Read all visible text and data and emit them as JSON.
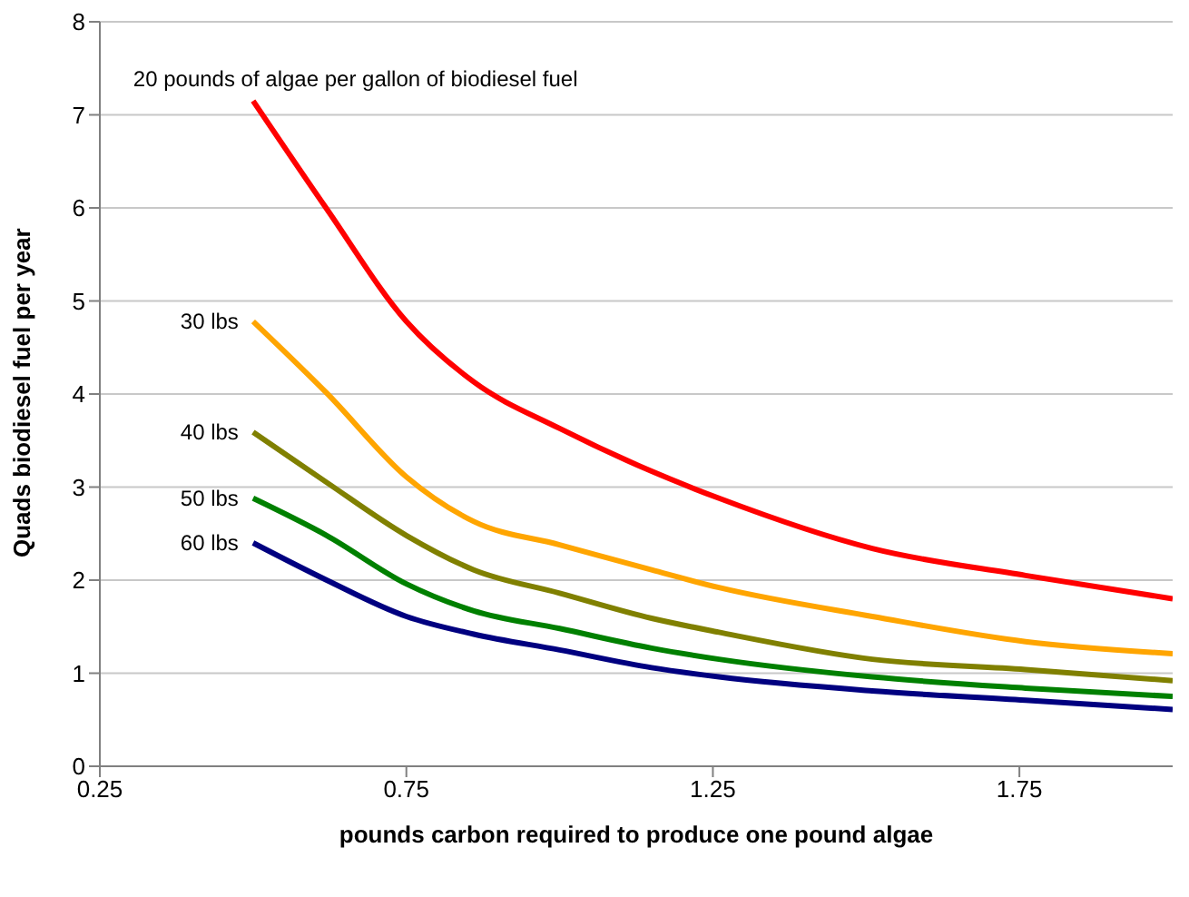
{
  "chart_data": {
    "type": "line",
    "xlabel": "pounds carbon required to produce one pound algae",
    "ylabel": "Quads biodiesel fuel per year",
    "x": [
      0.5,
      0.62,
      0.75,
      0.86,
      1.0,
      1.15,
      1.26,
      1.51,
      1.76,
      2.0
    ],
    "series": [
      {
        "name": "20 pounds of algae per gallon of biodiesel fuel",
        "color": "#ff0000",
        "values": [
          7.15,
          5.99,
          4.78,
          4.13,
          3.63,
          3.17,
          2.88,
          2.34,
          2.05,
          1.8
        ]
      },
      {
        "name": "30 lbs",
        "color": "#ffa500",
        "values": [
          4.78,
          4.01,
          3.11,
          2.63,
          2.38,
          2.11,
          1.92,
          1.61,
          1.34,
          1.21
        ]
      },
      {
        "name": "40 lbs",
        "color": "#808000",
        "values": [
          3.59,
          3.05,
          2.48,
          2.11,
          1.86,
          1.59,
          1.44,
          1.15,
          1.04,
          0.92
        ]
      },
      {
        "name": "50 lbs",
        "color": "#008000",
        "values": [
          2.88,
          2.48,
          1.96,
          1.67,
          1.48,
          1.27,
          1.15,
          0.96,
          0.84,
          0.75
        ]
      },
      {
        "name": "60 lbs",
        "color": "#000080",
        "values": [
          2.4,
          2.0,
          1.61,
          1.42,
          1.25,
          1.06,
          0.96,
          0.81,
          0.71,
          0.61
        ]
      }
    ],
    "xlim": [
      0.25,
      2.0
    ],
    "xticks": [
      0.25,
      0.75,
      1.25,
      1.75
    ],
    "ylim": [
      0,
      8
    ],
    "yticks": [
      0,
      1,
      2,
      3,
      4,
      5,
      6,
      7,
      8
    ],
    "grid": "y",
    "legend": false,
    "marker": "none",
    "line_style": "solid"
  }
}
